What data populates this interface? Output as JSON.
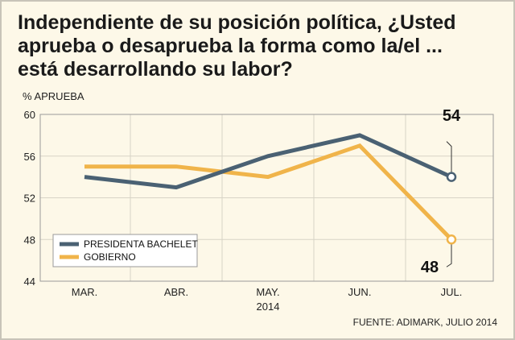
{
  "title": {
    "line1": "Independiente de su posición política, ¿Usted",
    "line2": "aprueba o desaprueba la forma como la/el ...",
    "line3": "está desarrollando su labor?"
  },
  "source": "FUENTE: ADIMARK, JULIO 2014",
  "colors": {
    "bachelet": "#4a6173",
    "gobierno": "#f0b44a",
    "background": "#fdf8e8",
    "grid": "#d8d4c6"
  },
  "chart_data": {
    "type": "line",
    "ylabel": "% APRUEBA",
    "xlabel": "",
    "categories": [
      "MAR.",
      "ABR.",
      "MAY.",
      "JUN.",
      "JUL."
    ],
    "category_sublabels": [
      "",
      "",
      "2014",
      "",
      ""
    ],
    "ylim": [
      44,
      60
    ],
    "yticks": [
      44,
      48,
      52,
      56,
      60
    ],
    "grid": true,
    "legend_position": "bottom-left",
    "series": [
      {
        "name": "PRESIDENTA BACHELET",
        "values": [
          54,
          53,
          56,
          58,
          54
        ],
        "color": "#4a6173"
      },
      {
        "name": "GOBIERNO",
        "values": [
          55,
          55,
          54,
          57,
          48
        ],
        "color": "#f0b44a"
      }
    ],
    "end_labels": [
      "54",
      "48"
    ]
  }
}
